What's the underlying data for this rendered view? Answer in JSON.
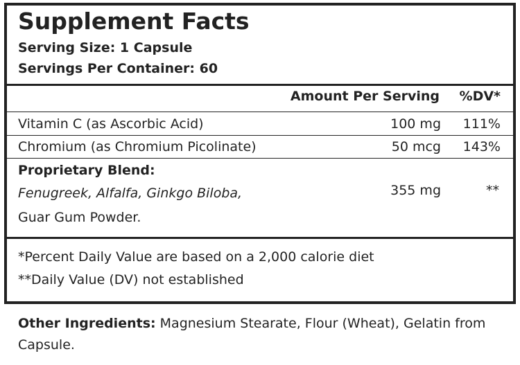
{
  "header": {
    "title": "Supplement Facts",
    "serving_size": "Serving Size: 1 Capsule",
    "servings_per_container": "Servings Per Container: 60"
  },
  "table": {
    "columns": [
      "Amount Per Serving",
      "%DV*"
    ],
    "rows": [
      [
        "Vitamin C (as Ascorbic Acid)",
        "100 mg",
        "111%"
      ],
      [
        "Chromium (as Chromium Picolinate)",
        "50 mcg",
        "143%"
      ]
    ]
  },
  "blend": {
    "label": "Proprietary Blend:",
    "ingredients_italic": "Fenugreek, Alfalfa, Ginkgo Biloba,",
    "ingredients_rest": "Guar Gum Powder.",
    "amount": "355 mg",
    "dv": "**"
  },
  "footnotes": [
    "*Percent Daily Value are based on a 2,000 calorie diet",
    "**Daily Value (DV) not established"
  ],
  "other_ingredients": {
    "label": "Other Ingredients:",
    "text": "Magnesium Stearate, Flour (Wheat), Gelatin from Capsule."
  }
}
